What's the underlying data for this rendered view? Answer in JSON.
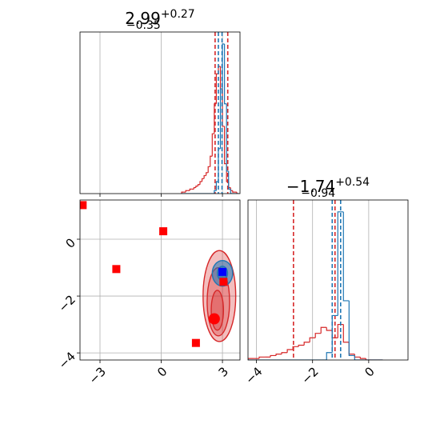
{
  "chart_data": [
    {
      "type": "histogram",
      "title": "2.99",
      "title_sup": "+0.27",
      "title_sub": "−0.35",
      "bins": [
        1.0,
        1.1,
        1.2,
        1.3,
        1.4,
        1.5,
        1.6,
        1.7,
        1.8,
        1.9,
        2.0,
        2.1,
        2.2,
        2.3,
        2.4,
        2.5,
        2.6,
        2.7,
        2.8,
        2.9,
        3.0,
        3.1,
        3.2,
        3.3,
        3.4,
        3.5,
        3.6,
        3.7,
        3.8
      ],
      "series": [
        {
          "color": "#d62728",
          "values": [
            1,
            1,
            2,
            2,
            3,
            3,
            4,
            5,
            6,
            8,
            10,
            12,
            14,
            18,
            25,
            40,
            60,
            80,
            85,
            70,
            45,
            20,
            8,
            4,
            2,
            1,
            1,
            0
          ],
          "quantiles": [
            2.64,
            3.26
          ]
        },
        {
          "color": "#1f77b4",
          "values": [
            0,
            0,
            0,
            0,
            0,
            0,
            0,
            0,
            0,
            0,
            0,
            0,
            0,
            0,
            0,
            0,
            2,
            8,
            30,
            70,
            100,
            60,
            15,
            3,
            0,
            0,
            0,
            0
          ],
          "quantiles": [
            2.8,
            2.98
          ]
        }
      ],
      "xlim": [
        -3.98,
        3.86
      ],
      "ylim": [
        0,
        108
      ],
      "xticks": [
        {
          "value": -3,
          "label": "−3"
        },
        0,
        3
      ],
      "grid": true
    },
    {
      "type": "contour",
      "xlim": [
        -3.98,
        3.86
      ],
      "ylim": [
        -4.25,
        1.38
      ],
      "xticks": [
        {
          "value": -3,
          "label": "−3"
        },
        0,
        3
      ],
      "yticks": [
        0,
        {
          "value": -2,
          "label": "−2"
        },
        {
          "value": -4,
          "label": "−4"
        }
      ],
      "grid": true,
      "series": [
        {
          "color": "#d62728",
          "contours": [
            {
              "x": 2.85,
              "y": -2.0,
              "rx": 0.8,
              "ry": 1.6
            },
            {
              "x": 2.8,
              "y": -2.2,
              "rx": 0.55,
              "ry": 1.2
            },
            {
              "x": 2.75,
              "y": -2.5,
              "rx": 0.3,
              "ry": 0.7
            }
          ]
        },
        {
          "color": "#1f77b4",
          "contours": [
            {
              "x": 3.0,
              "y": -1.2,
              "rx": 0.5,
              "ry": 0.45
            },
            {
              "x": 3.0,
              "y": -1.2,
              "rx": 0.25,
              "ry": 0.25
            }
          ]
        }
      ],
      "points": [
        {
          "color": "#ff0000",
          "marker": "square",
          "x": [
            -3.85,
            -2.2,
            0.1,
            1.7,
            3.05
          ],
          "y": [
            1.2,
            -1.05,
            0.28,
            -3.65,
            -1.5
          ]
        },
        {
          "color": "#0000ff",
          "marker": "square",
          "x": [
            3.0
          ],
          "y": [
            -1.15
          ]
        },
        {
          "color": "#ff0000",
          "marker": "circle",
          "x": [
            2.6
          ],
          "y": [
            -2.8
          ]
        }
      ]
    },
    {
      "type": "histogram",
      "title": "−1.74",
      "title_sup": "+0.54",
      "title_sub": "−0.94",
      "bins": [
        -4.3,
        -4.1,
        -3.9,
        -3.7,
        -3.5,
        -3.3,
        -3.1,
        -2.9,
        -2.7,
        -2.5,
        -2.3,
        -2.1,
        -1.9,
        -1.7,
        -1.5,
        -1.3,
        -1.1,
        -0.9,
        -0.7,
        -0.5,
        -0.3,
        -0.1,
        0.1,
        0.3,
        0.5
      ],
      "series": [
        {
          "color": "#d62728",
          "values": [
            1,
            1,
            2,
            2,
            3,
            4,
            5,
            7,
            9,
            10,
            12,
            15,
            18,
            22,
            20,
            15,
            24,
            12,
            4,
            2,
            1,
            0,
            0,
            0
          ],
          "quantiles": [
            -2.68,
            -1.2
          ]
        },
        {
          "color": "#1f77b4",
          "values": [
            0,
            0,
            0,
            0,
            0,
            0,
            0,
            0,
            0,
            0,
            0,
            0,
            0,
            0,
            5,
            30,
            100,
            40,
            3,
            0,
            0,
            0,
            0,
            0
          ],
          "quantiles": [
            -1.3,
            -1.0
          ]
        }
      ],
      "xlim": [
        -4.3,
        1.4
      ],
      "ylim": [
        0,
        108
      ],
      "xticks": [
        {
          "value": -4,
          "label": "−4"
        },
        {
          "value": -2,
          "label": "−2"
        },
        0
      ],
      "grid": true
    }
  ]
}
